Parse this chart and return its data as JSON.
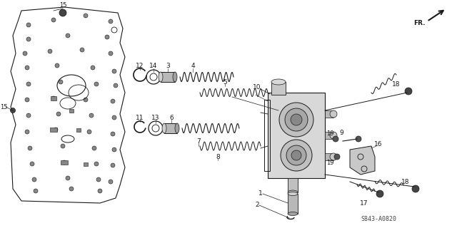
{
  "bg_color": "#ffffff",
  "lc": "#1a1a1a",
  "fig_width": 6.4,
  "fig_height": 3.2,
  "dpi": 100,
  "watermark": "S843-A0820",
  "fr_label": "FR."
}
